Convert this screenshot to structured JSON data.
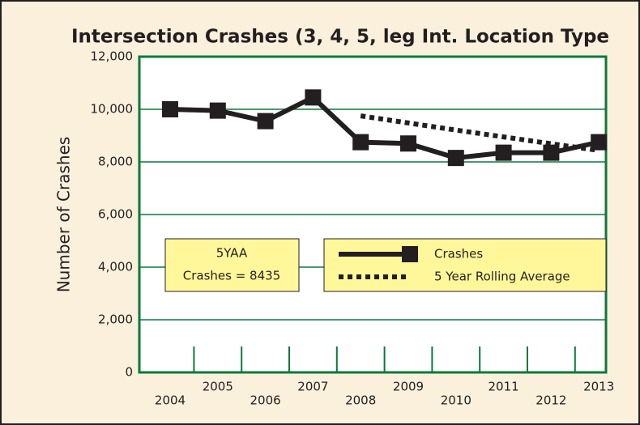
{
  "chart_data": {
    "type": "line",
    "title": "Intersection Crashes (3, 4, 5, leg Int. Location Type",
    "y_label": "Number of Crashes",
    "categories": [
      "2004",
      "2005",
      "2006",
      "2007",
      "2008",
      "2009",
      "2010",
      "2011",
      "2012",
      "2013"
    ],
    "series": [
      {
        "name": "Crashes",
        "color": "#231f20",
        "style": "solid",
        "values": [
          10000,
          9950,
          9550,
          10450,
          8750,
          8700,
          8150,
          8350,
          8350,
          8750
        ]
      },
      {
        "name": "5 Year Rolling Average",
        "color": "#231f20",
        "style": "dotted",
        "values": [
          null,
          null,
          null,
          null,
          9750,
          9480,
          9210,
          8950,
          8690,
          8435
        ]
      }
    ],
    "ylim": [
      0,
      12000
    ],
    "yticks": [
      {
        "value": 0,
        "label": "0"
      },
      {
        "value": 2000,
        "label": "2,000"
      },
      {
        "value": 4000,
        "label": "4,000"
      },
      {
        "value": 6000,
        "label": "6,000"
      },
      {
        "value": 8000,
        "label": "8,000"
      },
      {
        "value": 10000,
        "label": "10,000"
      },
      {
        "value": 12000,
        "label": "12,000"
      }
    ],
    "grid": true,
    "annotation": [
      "5YAA",
      "Crashes = 8435"
    ]
  }
}
